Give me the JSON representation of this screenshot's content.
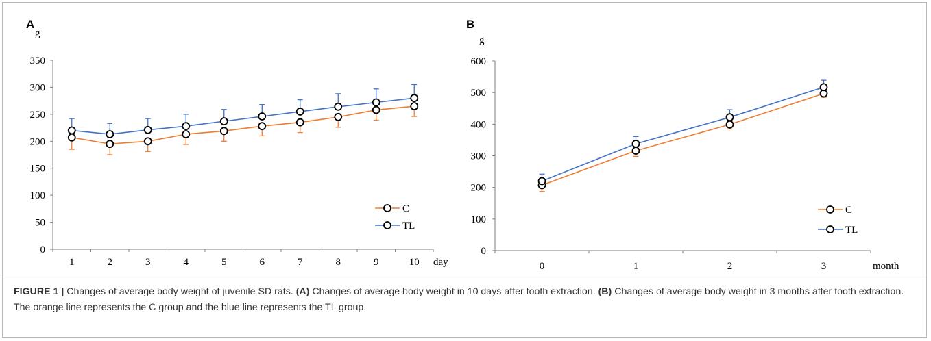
{
  "caption": {
    "label": "FIGURE 1 |",
    "text1": " Changes of average body weight of juvenile SD rats. ",
    "refA": "(A)",
    "text2": " Changes of average body weight in 10 days after tooth extraction. ",
    "refB": "(B)",
    "text3": " Changes of average body weight in 3 months after tooth extraction. The orange line represents the C group and the blue line represents the TL group."
  },
  "colors": {
    "C": "#ed7d31",
    "TL": "#4472c4",
    "axis": "#7f7f7f"
  },
  "chart_data": [
    {
      "panel": "A",
      "type": "line",
      "ylabel": "g",
      "xlabel": "day",
      "ylim": [
        0,
        350
      ],
      "yticks": [
        "0",
        "50",
        "100",
        "150",
        "200",
        "250",
        "300",
        "350"
      ],
      "categories": [
        "1",
        "2",
        "3",
        "4",
        "5",
        "6",
        "7",
        "8",
        "9",
        "10"
      ],
      "legend_position": "bottom-right",
      "series": [
        {
          "name": "C",
          "values": [
            207,
            195,
            200,
            213,
            219,
            228,
            235,
            245,
            258,
            265
          ],
          "error": [
            22,
            20,
            19,
            19,
            19,
            18,
            19,
            19,
            19,
            19
          ]
        },
        {
          "name": "TL",
          "values": [
            220,
            213,
            221,
            228,
            237,
            246,
            255,
            264,
            272,
            280
          ],
          "error": [
            22,
            20,
            21,
            22,
            22,
            22,
            22,
            24,
            25,
            25
          ]
        }
      ]
    },
    {
      "panel": "B",
      "type": "line",
      "ylabel": "g",
      "xlabel": "month",
      "ylim": [
        0,
        600
      ],
      "yticks": [
        "0",
        "100",
        "200",
        "300",
        "400",
        "500",
        "600"
      ],
      "categories": [
        "0",
        "1",
        "2",
        "3"
      ],
      "legend_position": "bottom-right",
      "series": [
        {
          "name": "C",
          "values": [
            207,
            316,
            399,
            497
          ],
          "error": [
            20,
            18,
            14,
            12
          ]
        },
        {
          "name": "TL",
          "values": [
            220,
            338,
            422,
            517
          ],
          "error": [
            22,
            23,
            24,
            22
          ]
        }
      ]
    }
  ]
}
